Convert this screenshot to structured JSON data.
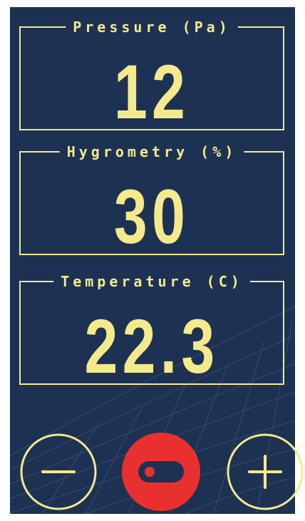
{
  "panels": [
    {
      "label": "Pressure (Pa)",
      "value": 12
    },
    {
      "label": "Hygrometry (%)",
      "value": 30
    },
    {
      "label": "Temperature (C)",
      "value": 22.3
    }
  ]
}
